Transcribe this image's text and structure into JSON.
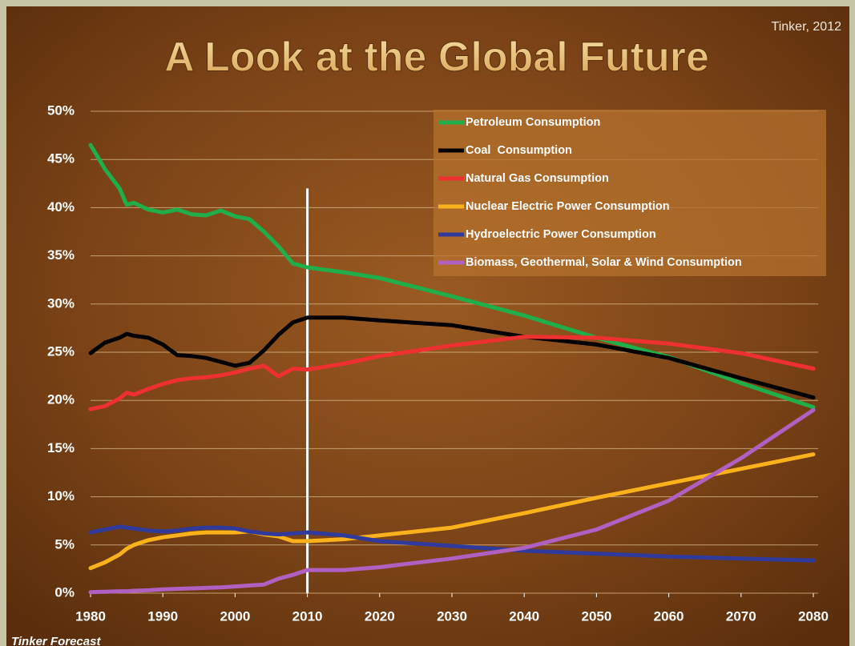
{
  "chart_data": {
    "type": "line",
    "title": "A Look at the Global Future",
    "source": "Tinker, 2012",
    "footnote": "Tinker Forecast",
    "x": [
      1980,
      1982,
      1984,
      1985,
      1986,
      1988,
      1990,
      1992,
      1994,
      1996,
      1998,
      2000,
      2002,
      2004,
      2006,
      2008,
      2010,
      2015,
      2020,
      2030,
      2040,
      2050,
      2060,
      2070,
      2080
    ],
    "series": [
      {
        "name": "Petroleum Consumption",
        "color": "#1fae4a",
        "values": [
          46.5,
          44,
          42,
          40.3,
          40.5,
          39.8,
          39.5,
          39.8,
          39.3,
          39.2,
          39.7,
          39.1,
          38.8,
          37.5,
          36,
          34.2,
          33.8,
          33.3,
          32.7,
          30.8,
          28.8,
          26.5,
          24.5,
          21.8,
          19.3
        ]
      },
      {
        "name": "Coal  Consumption",
        "color": "#000000",
        "values": [
          24.9,
          26,
          26.5,
          26.9,
          26.7,
          26.5,
          25.8,
          24.7,
          24.6,
          24.4,
          24,
          23.6,
          23.9,
          25.2,
          26.8,
          28.1,
          28.6,
          28.6,
          28.3,
          27.8,
          26.6,
          25.8,
          24.4,
          22.3,
          20.3
        ]
      },
      {
        "name": "Natural Gas Consumption",
        "color": "#ee3030",
        "values": [
          19.1,
          19.4,
          20.2,
          20.8,
          20.6,
          21.2,
          21.7,
          22.1,
          22.3,
          22.4,
          22.6,
          22.9,
          23.3,
          23.6,
          22.5,
          23.3,
          23.2,
          23.8,
          24.6,
          25.7,
          26.6,
          26.5,
          25.9,
          24.9,
          23.3
        ]
      },
      {
        "name": "Nuclear Electric Power Consumption",
        "color": "#f9b21c",
        "values": [
          2.6,
          3.2,
          4,
          4.6,
          5,
          5.5,
          5.8,
          6,
          6.2,
          6.3,
          6.3,
          6.3,
          6.4,
          6.1,
          5.9,
          5.4,
          5.4,
          5.6,
          6,
          6.8,
          8.3,
          9.9,
          11.4,
          12.9,
          14.4
        ]
      },
      {
        "name": "Hydroelectric Power Consumption",
        "color": "#2f3a9c",
        "values": [
          6.3,
          6.6,
          6.9,
          6.8,
          6.7,
          6.5,
          6.4,
          6.5,
          6.7,
          6.8,
          6.8,
          6.7,
          6.4,
          6.2,
          6.1,
          6.2,
          6.3,
          6,
          5.4,
          4.9,
          4.4,
          4.1,
          3.8,
          3.6,
          3.4
        ]
      },
      {
        "name": "Biomass, Geothermal, Solar & Wind Consumption",
        "color": "#b060c0",
        "values": [
          0.1,
          0.15,
          0.2,
          0.2,
          0.25,
          0.3,
          0.4,
          0.45,
          0.5,
          0.55,
          0.6,
          0.7,
          0.8,
          0.9,
          1.5,
          1.9,
          2.4,
          2.4,
          2.7,
          3.6,
          4.7,
          6.6,
          9.6,
          14,
          19
        ]
      }
    ],
    "reference_line": {
      "x": 2010,
      "y_end": 42
    },
    "xlim": [
      1980,
      2080
    ],
    "xticks": [
      1980,
      1990,
      2000,
      2010,
      2020,
      2030,
      2040,
      2050,
      2060,
      2070,
      2080
    ],
    "ylim": [
      0,
      50
    ],
    "yticks": [
      {
        "value": 0,
        "label": "0%"
      },
      {
        "value": 5,
        "label": "5%"
      },
      {
        "value": 10,
        "label": "10%"
      },
      {
        "value": 15,
        "label": "15%"
      },
      {
        "value": 20,
        "label": "20%"
      },
      {
        "value": 25,
        "label": "25%"
      },
      {
        "value": 30,
        "label": "30%"
      },
      {
        "value": 35,
        "label": "35%"
      },
      {
        "value": 40,
        "label": "40%"
      },
      {
        "value": 45,
        "label": "45%"
      },
      {
        "value": 50,
        "label": "50%"
      }
    ],
    "grid": true,
    "legend": "upper right"
  }
}
